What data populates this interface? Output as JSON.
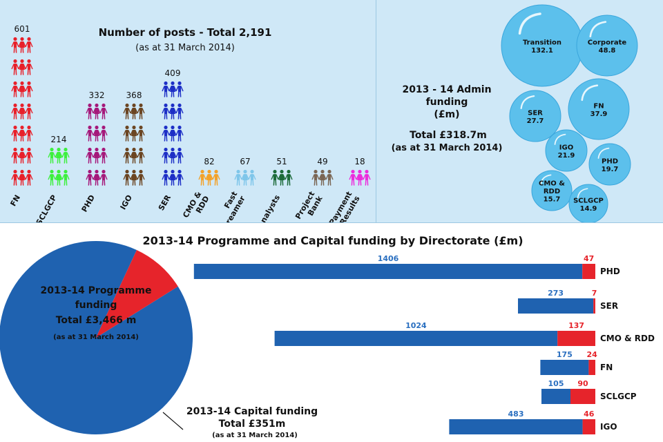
{
  "posts": {
    "title": "Number of posts - Total 2,191",
    "subtitle": "(as at 31 March 2014)",
    "chart_data": {
      "type": "bar",
      "title": "Number of posts - Total 2,191",
      "subtitle": "(as at 31 March 2014)",
      "categories": [
        "FN",
        "SCLGCP",
        "PHD",
        "IGO",
        "SER",
        "CMO & RDD",
        "Fast Streamer",
        "Analysts",
        "Project Bank",
        "Payment by Results"
      ],
      "label_lines": [
        [
          "FN"
        ],
        [
          "SCLGCP"
        ],
        [
          "PHD"
        ],
        [
          "IGO"
        ],
        [
          "SER"
        ],
        [
          "CMO &",
          "RDD"
        ],
        [
          "Fast",
          "Streamer"
        ],
        [
          "Analysts"
        ],
        [
          "Project",
          "Bank"
        ],
        [
          "Payment",
          "by Results"
        ]
      ],
      "values": [
        601,
        214,
        332,
        368,
        409,
        82,
        67,
        51,
        49,
        18
      ],
      "value_labels": [
        "601",
        "214",
        "332",
        "368",
        "409",
        "82",
        "67",
        "51",
        "49",
        "18"
      ],
      "colors": [
        "#e8202a",
        "#3df03d",
        "#a5187a",
        "#6b4522",
        "#1d2fc6",
        "#f3a22a",
        "#7fc6ea",
        "#1c6b3a",
        "#7a6654",
        "#ec2ddc"
      ],
      "icon": "people-icon"
    }
  },
  "admin": {
    "title_lines": [
      "2013 - 14 Admin",
      "funding",
      "(£m)"
    ],
    "total_lines": [
      "Total £318.7m",
      "(as at 31 March 2014)"
    ],
    "chart_data": {
      "type": "bubble",
      "title": "2013 - 14 Admin funding (£m)",
      "total": "Total £318.7m",
      "note": "(as at 31 March 2014)",
      "items": [
        {
          "name_lines": [
            "Transition"
          ],
          "value": 132.1,
          "value_label": "132.1"
        },
        {
          "name_lines": [
            "Corporate"
          ],
          "value": 48.8,
          "value_label": "48.8"
        },
        {
          "name_lines": [
            "SER"
          ],
          "value": 27.7,
          "value_label": "27.7"
        },
        {
          "name_lines": [
            "FN"
          ],
          "value": 37.9,
          "value_label": "37.9"
        },
        {
          "name_lines": [
            "IGO"
          ],
          "value": 21.9,
          "value_label": "21.9"
        },
        {
          "name_lines": [
            "PHD"
          ],
          "value": 19.7,
          "value_label": "19.7"
        },
        {
          "name_lines": [
            "CMO &",
            "RDD"
          ],
          "value": 15.7,
          "value_label": "15.7"
        },
        {
          "name_lines": [
            "SCLGCP"
          ],
          "value": 14.9,
          "value_label": "14.9"
        }
      ],
      "bubble_color": "#5cc0ec"
    }
  },
  "programme": {
    "title": "2013-14 Programme and Capital funding by Directorate (£m)",
    "pie": {
      "type": "pie",
      "programme_lines": [
        "2013-14 Programme",
        "funding",
        "Total  £3,466 m"
      ],
      "programme_note": "(as at 31 March 2014)",
      "capital_lines": [
        "2013-14 Capital funding",
        "Total £351m"
      ],
      "capital_note": "(as at 31 March 2014)",
      "slices": [
        {
          "name": "2013-14 Programme funding",
          "value": 3466,
          "color": "#1f62b0"
        },
        {
          "name": "2013-14 Capital funding",
          "value": 351,
          "color": "#e6242b"
        }
      ]
    },
    "chart_data": {
      "type": "bar",
      "orientation": "horizontal-stacked",
      "title": "2013-14 Programme and Capital funding by Directorate (£m)",
      "categories": [
        "PHD",
        "SER",
        "CMO & RDD",
        "FN",
        "SCLGCP",
        "IGO"
      ],
      "series": [
        {
          "values": [
            1406,
            273,
            1024,
            175,
            105,
            483
          ],
          "labels": [
            "1406",
            "273",
            "1024",
            "175",
            "105",
            "483"
          ],
          "color": "#1f62b0",
          "label_color": "#2a6fc0"
        },
        {
          "values": [
            47,
            7,
            137,
            24,
            90,
            46
          ],
          "labels": [
            "47",
            "7",
            "137",
            "24",
            "90",
            "46"
          ],
          "color": "#e6242b",
          "label_color": "#e6242b"
        }
      ]
    }
  }
}
